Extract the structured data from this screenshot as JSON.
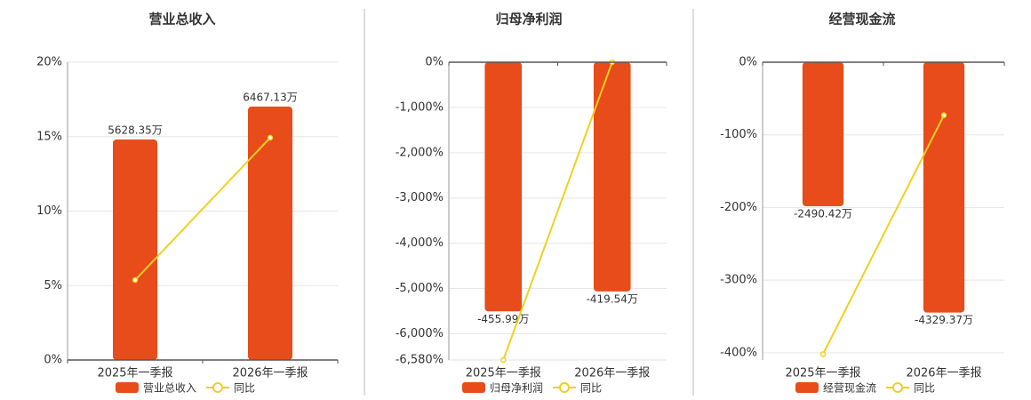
{
  "chart_data": [
    {
      "type": "bar-line",
      "title": "营业总收入",
      "categories": [
        "2025年一季报",
        "2026年一季报"
      ],
      "series": [
        {
          "name": "营业总收入",
          "color": "#e84c1a",
          "axis": "y2",
          "values": [
            5628.35,
            6467.13
          ],
          "value_labels": [
            "5628.35万",
            "6467.13万"
          ]
        },
        {
          "name": "同比",
          "color": "#f0d020",
          "values": [
            5.37,
            14.93
          ]
        }
      ],
      "ylim": [
        0,
        20
      ],
      "yticks": [
        {
          "value": 0,
          "label": "0%"
        },
        {
          "value": 5,
          "label": "5%"
        },
        {
          "value": 10,
          "label": "10%"
        },
        {
          "value": 15,
          "label": "15%"
        },
        {
          "value": 20,
          "label": "20%"
        }
      ],
      "y2lim": [
        0,
        7600
      ],
      "grid": true
    },
    {
      "type": "bar-line",
      "title": "归母净利润",
      "categories": [
        "2025年一季报",
        "2026年一季报"
      ],
      "series": [
        {
          "name": "归母净利润",
          "color": "#e84c1a",
          "axis": "y2",
          "values": [
            -455.99,
            -419.54
          ],
          "value_labels": [
            "-455.99万",
            "-419.54万"
          ]
        },
        {
          "name": "同比",
          "color": "#f0d020",
          "values": [
            -6580,
            0
          ]
        }
      ],
      "ylim": [
        -6580,
        0
      ],
      "yticks": [
        {
          "value": 0,
          "label": "0%"
        },
        {
          "value": -1000,
          "label": "-1,000%"
        },
        {
          "value": -2000,
          "label": "-2,000%"
        },
        {
          "value": -3000,
          "label": "-3,000%"
        },
        {
          "value": -4000,
          "label": "-4,000%"
        },
        {
          "value": -5000,
          "label": "-5,000%"
        },
        {
          "value": -6000,
          "label": "-6,000%"
        },
        {
          "value": -6580,
          "label": "-6,580%"
        }
      ],
      "y2lim": [
        -545,
        0
      ],
      "grid": true
    },
    {
      "type": "bar-line",
      "title": "经营现金流",
      "categories": [
        "2025年一季报",
        "2026年一季报"
      ],
      "series": [
        {
          "name": "经营现金流",
          "color": "#e84c1a",
          "axis": "y2",
          "values": [
            -2490.42,
            -4329.37
          ],
          "value_labels": [
            "-2490.42万",
            "-4329.37万"
          ]
        },
        {
          "name": "同比",
          "color": "#f0d020",
          "values": [
            -402,
            -73
          ]
        }
      ],
      "ylim": [
        -410,
        0
      ],
      "yticks": [
        {
          "value": 0,
          "label": "0%"
        },
        {
          "value": -100,
          "label": "-100%"
        },
        {
          "value": -200,
          "label": "-200%"
        },
        {
          "value": -300,
          "label": "-300%"
        },
        {
          "value": -400,
          "label": "-400%"
        }
      ],
      "y2lim": [
        -5150,
        0
      ],
      "grid": true
    }
  ]
}
